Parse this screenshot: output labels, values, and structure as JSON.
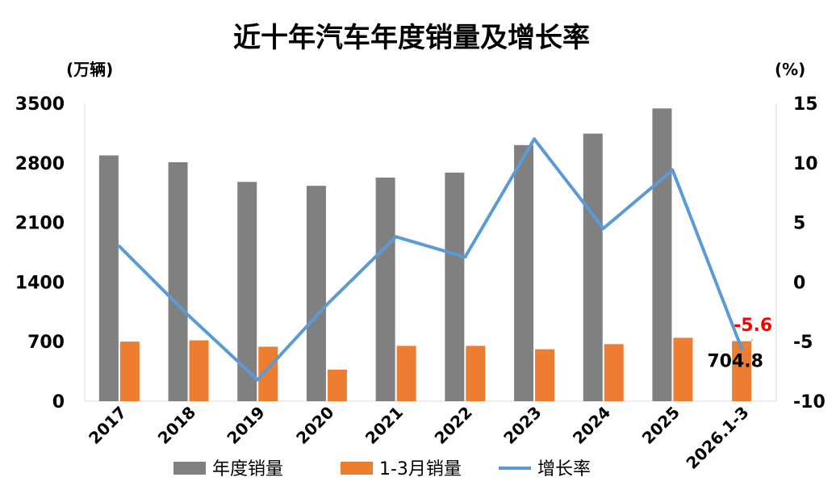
{
  "chart_data": {
    "type": "bar",
    "title": "近十年汽车年度销量及增长率",
    "y_left_unit": "(万辆)",
    "y_right_unit": "(%)",
    "categories": [
      "2017",
      "2018",
      "2019",
      "2020",
      "2021",
      "2022",
      "2023",
      "2024",
      "2025",
      "2026.1-3"
    ],
    "y_left_ticks": [
      "3500",
      "2800",
      "2100",
      "1400",
      "700",
      "0"
    ],
    "y_right_ticks": [
      "15",
      "10",
      "5",
      "0",
      "-5",
      "-10"
    ],
    "ylim_left": [
      0,
      3500
    ],
    "ylim_right": [
      -10,
      15
    ],
    "series": [
      {
        "name": "年度销量",
        "type": "bar",
        "color": "#808080",
        "values": [
          2888,
          2808,
          2577,
          2531,
          2627,
          2686,
          3009,
          3144,
          3440,
          null
        ]
      },
      {
        "name": "1-3月销量",
        "type": "bar",
        "color": "#ed7d31",
        "values": [
          700,
          715,
          640,
          370,
          650,
          650,
          610,
          670,
          745,
          704.8
        ]
      },
      {
        "name": "增长率",
        "type": "line",
        "color": "#5b9bd5",
        "values": [
          3.0,
          -2.8,
          -8.2,
          -1.9,
          3.8,
          2.1,
          12.0,
          4.5,
          9.4,
          -5.6
        ]
      }
    ],
    "data_labels": [
      {
        "series": "增长率",
        "index": 9,
        "text": "-5.6",
        "color": "#ff0000"
      },
      {
        "series": "1-3月销量",
        "index": 9,
        "text": "704.8",
        "color": "#000000"
      }
    ],
    "legend_position": "bottom",
    "grid": false
  }
}
